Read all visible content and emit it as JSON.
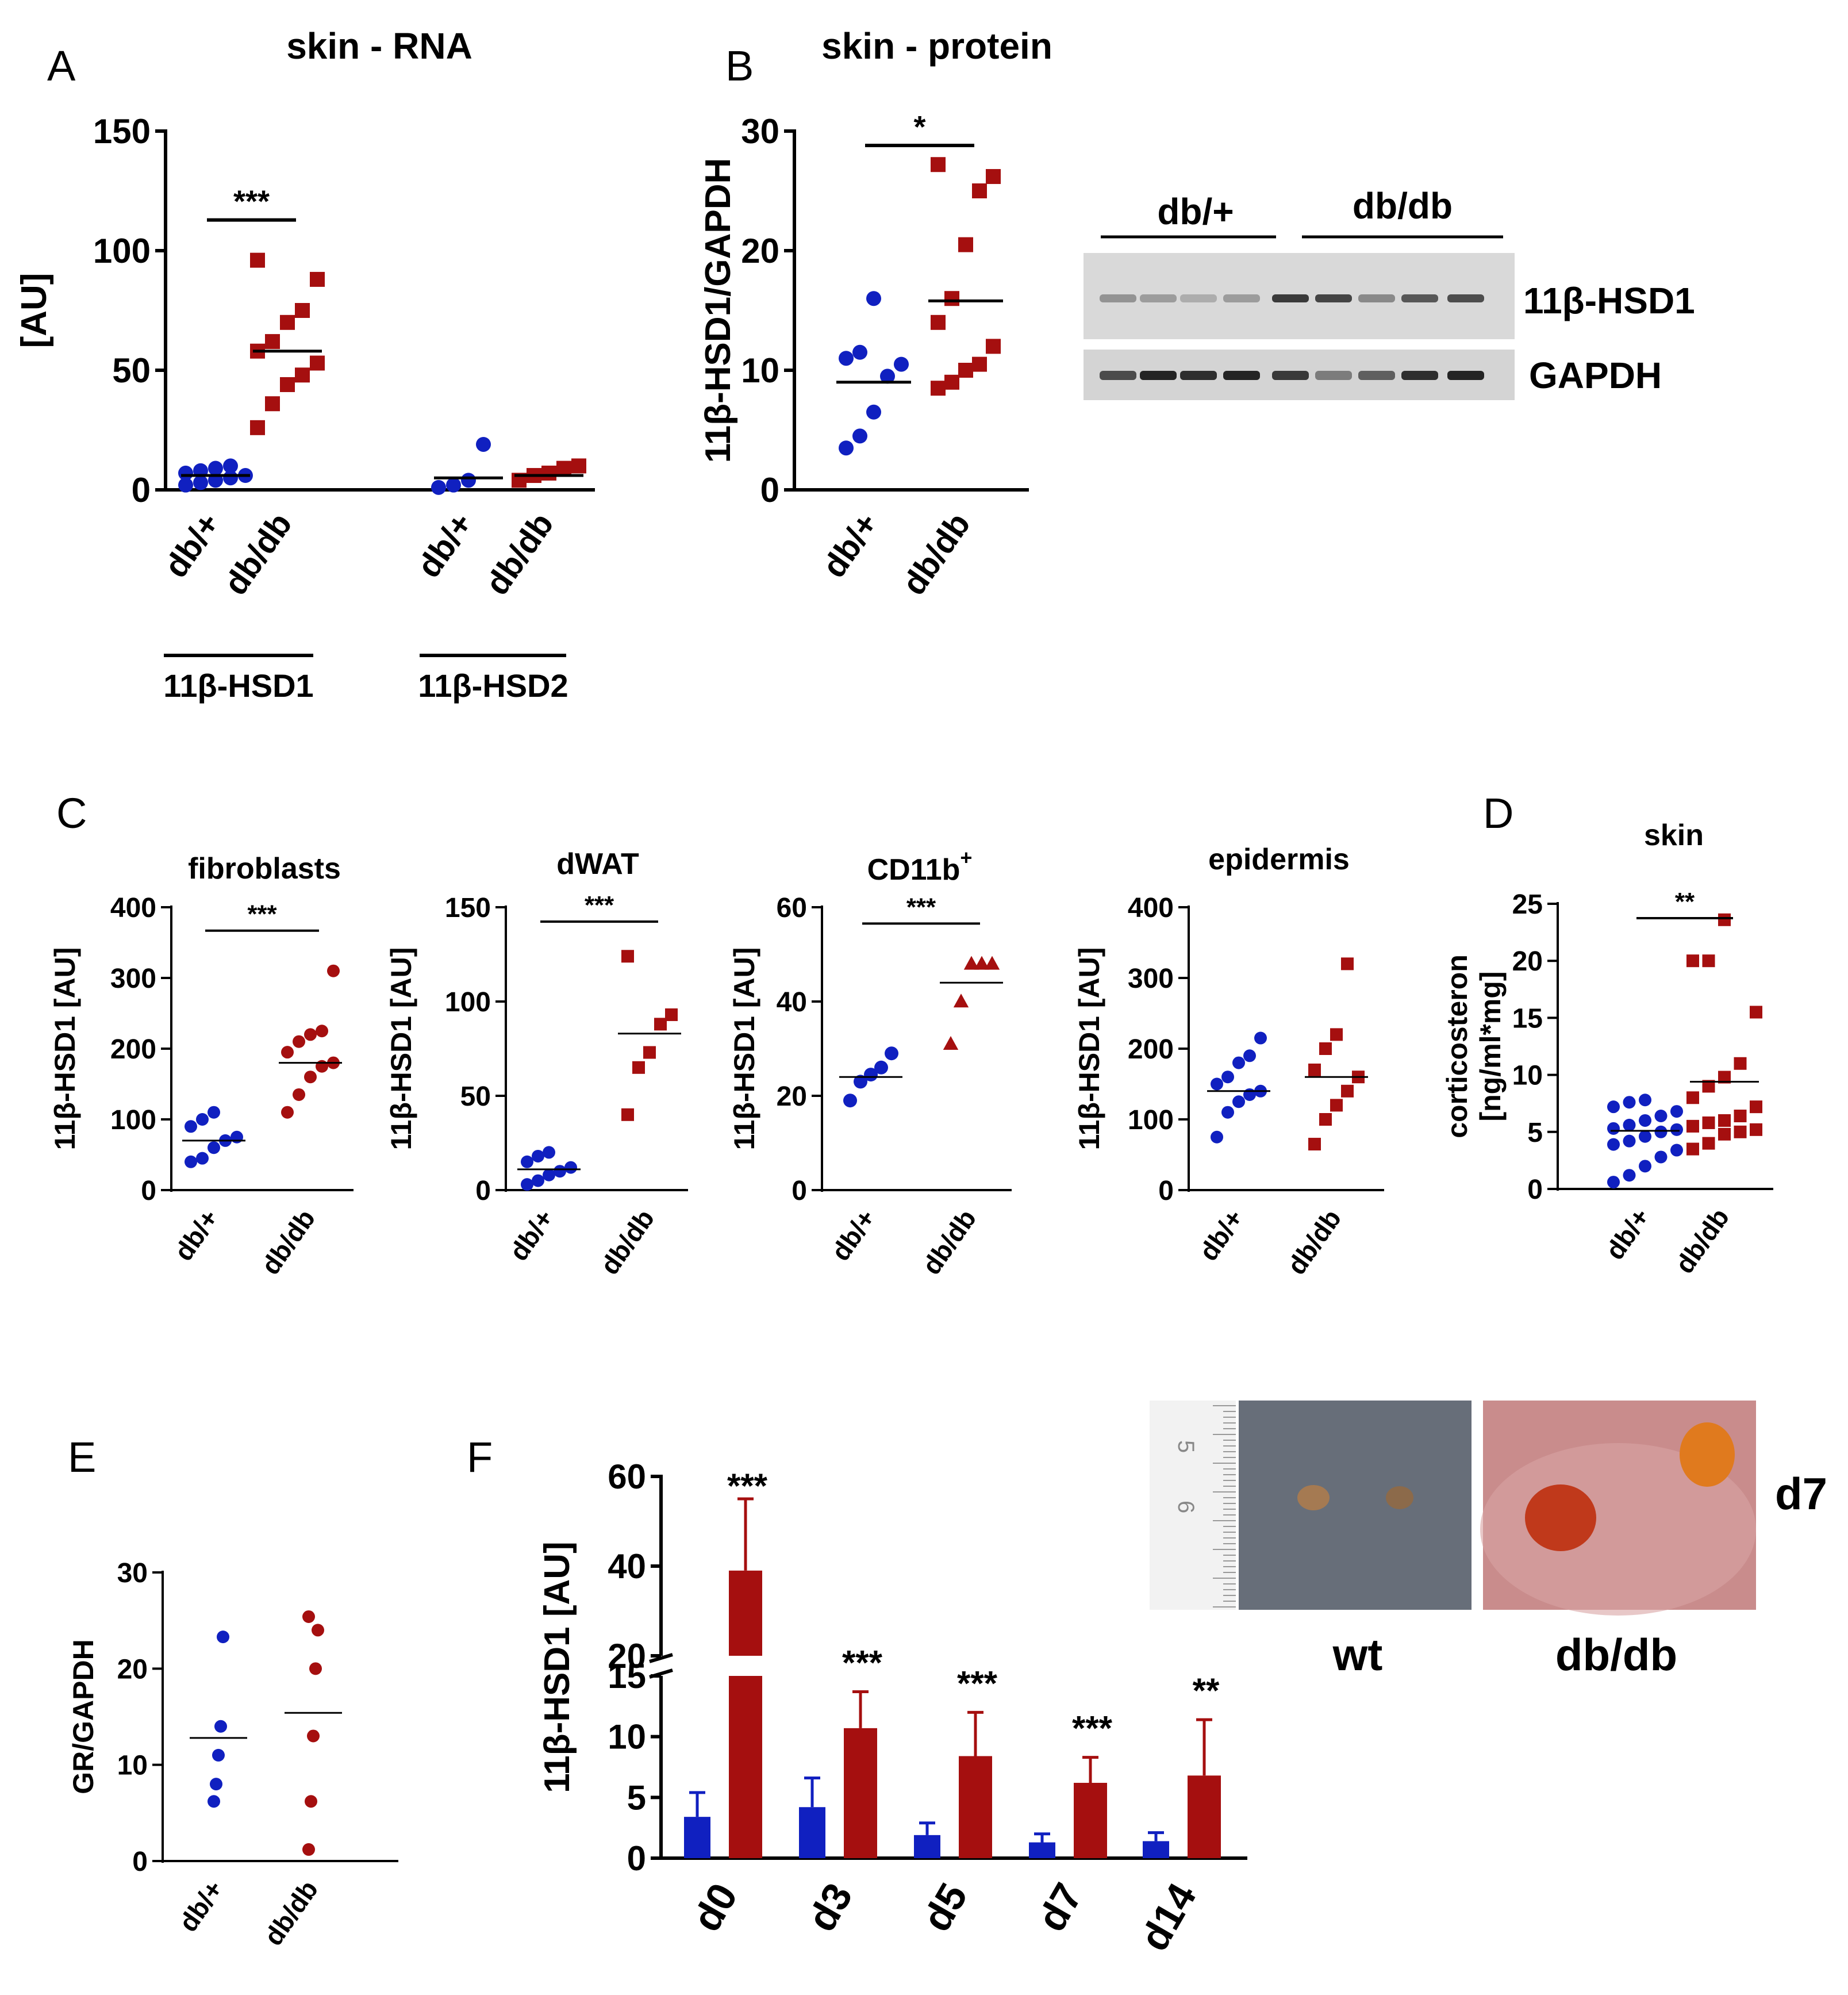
{
  "colors": {
    "dbplus": "#1020c0",
    "dbdb": "#a50f0f",
    "axis": "#000000"
  },
  "chart_data": [
    {
      "id": "A",
      "type": "scatter",
      "panel_label": "A",
      "title": "skin -  RNA",
      "ylabel": "[AU]",
      "ylim": [
        0,
        150
      ],
      "yticks": [
        "0",
        "50",
        "100",
        "150"
      ],
      "groups": [
        {
          "label": "db/+",
          "gene": "11β-HSD1",
          "series": "db/+",
          "mean": 6,
          "values": [
            2,
            3,
            4,
            5,
            6,
            7,
            8,
            9,
            10
          ]
        },
        {
          "label": "db/db",
          "gene": "11β-HSD1",
          "series": "db/db",
          "mean": 58,
          "values": [
            26,
            36,
            44,
            48,
            53,
            58,
            62,
            70,
            75,
            88,
            96
          ]
        },
        {
          "label": "db/+",
          "gene": "11β-HSD2",
          "series": "db/+",
          "mean": 5,
          "values": [
            1,
            2,
            4,
            19
          ]
        },
        {
          "label": "db/db",
          "gene": "11β-HSD2",
          "series": "db/db",
          "mean": 6,
          "values": [
            4,
            6,
            7,
            9,
            10
          ]
        }
      ],
      "group_brackets": [
        "11β-HSD1",
        "11β-HSD2"
      ],
      "significance": [
        {
          "text": "***",
          "between": [
            0,
            1
          ]
        }
      ]
    },
    {
      "id": "B",
      "type": "scatter",
      "panel_label": "B",
      "title": "skin - protein",
      "ylabel": "11β-HSD1/GAPDH",
      "ylim": [
        0,
        30
      ],
      "yticks": [
        "0",
        "10",
        "20",
        "30"
      ],
      "groups": [
        {
          "label": "db/+",
          "series": "db/+",
          "mean": 9,
          "values": [
            3.5,
            4.5,
            6.5,
            9.5,
            10.5,
            11,
            11.5,
            16
          ]
        },
        {
          "label": "db/db",
          "series": "db/db",
          "mean": 15.8,
          "values": [
            8.5,
            9,
            10,
            10.5,
            12,
            14,
            16,
            20.5,
            25,
            26.2,
            27.2
          ]
        }
      ],
      "significance": [
        {
          "text": "*",
          "between": [
            0,
            1
          ]
        }
      ]
    },
    {
      "id": "C1",
      "type": "scatter",
      "panel_label": "C",
      "title": "fibroblasts",
      "ylabel": "11β-HSD1 [AU]",
      "ylim": [
        0,
        400
      ],
      "yticks": [
        "0",
        "100",
        "200",
        "300",
        "400"
      ],
      "groups": [
        {
          "label": "db/+",
          "series": "db/+",
          "mean": 70,
          "values": [
            40,
            45,
            60,
            70,
            75,
            90,
            100,
            110
          ]
        },
        {
          "label": "db/db",
          "series": "db/db",
          "mean": 180,
          "values": [
            110,
            135,
            160,
            175,
            180,
            195,
            210,
            220,
            225,
            310
          ]
        }
      ],
      "significance": [
        {
          "text": "***",
          "between": [
            0,
            1
          ]
        }
      ]
    },
    {
      "id": "C2",
      "type": "scatter",
      "title": "dWAT",
      "ylabel": "11β-HSD1 [AU]",
      "ylim": [
        0,
        150
      ],
      "yticks": [
        "0",
        "50",
        "100",
        "150"
      ],
      "groups": [
        {
          "label": "db/+",
          "series": "db/+",
          "mean": 11,
          "values": [
            3,
            5,
            8,
            10,
            12,
            15,
            18,
            20
          ]
        },
        {
          "label": "db/db",
          "series": "db/db",
          "mean": 83,
          "values": [
            40,
            65,
            73,
            88,
            93,
            124
          ]
        }
      ],
      "significance": [
        {
          "text": "***",
          "between": [
            0,
            1
          ]
        }
      ]
    },
    {
      "id": "C3",
      "type": "scatter",
      "title": "CD11b",
      "title_superscript": "+",
      "ylabel": "11β-HSD1 [AU]",
      "ylim": [
        0,
        60
      ],
      "yticks": [
        "0",
        "20",
        "40",
        "60"
      ],
      "groups": [
        {
          "label": "db/+",
          "series": "db/+",
          "mean": 24,
          "values": [
            19,
            23,
            24.5,
            26,
            29
          ]
        },
        {
          "label": "db/db",
          "series": "db/db",
          "mean": 44,
          "values": [
            31,
            40,
            48,
            48,
            48
          ]
        }
      ],
      "significance": [
        {
          "text": "***",
          "between": [
            0,
            1
          ]
        }
      ]
    },
    {
      "id": "C4",
      "type": "scatter",
      "title": "epidermis",
      "ylabel": "11β-HSD1 [AU]",
      "ylim": [
        0,
        400
      ],
      "yticks": [
        "0",
        "100",
        "200",
        "300",
        "400"
      ],
      "groups": [
        {
          "label": "db/+",
          "series": "db/+",
          "mean": 140,
          "values": [
            75,
            110,
            125,
            135,
            140,
            150,
            160,
            180,
            190,
            215
          ]
        },
        {
          "label": "db/db",
          "series": "db/db",
          "mean": 160,
          "values": [
            65,
            100,
            120,
            140,
            160,
            170,
            200,
            220,
            320
          ]
        }
      ],
      "significance": []
    },
    {
      "id": "D",
      "type": "scatter",
      "panel_label": "D",
      "title": "skin",
      "ylabel_lines": [
        "corticosteron",
        "[ng/ml*mg]"
      ],
      "ylim": [
        0,
        25
      ],
      "yticks": [
        "0",
        "5",
        "10",
        "15",
        "20",
        "25"
      ],
      "groups": [
        {
          "label": "db/+",
          "series": "db/+",
          "mean": 5.1,
          "values": [
            0.6,
            1.2,
            2,
            2.8,
            3.4,
            3.9,
            4.2,
            4.6,
            5,
            5.3,
            5.6,
            6,
            6.4,
            6.8,
            7.2,
            7.6,
            7.8,
            5.2
          ]
        },
        {
          "label": "db/db",
          "series": "db/db",
          "mean": 9.4,
          "values": [
            3.5,
            4,
            4.8,
            5.2,
            5.5,
            6,
            6.4,
            7.2,
            8,
            9,
            11,
            15.5,
            20,
            20,
            23.6,
            5,
            5.8,
            9.8
          ]
        }
      ],
      "significance": [
        {
          "text": "**",
          "between": [
            0,
            1
          ]
        }
      ]
    },
    {
      "id": "E",
      "type": "scatter",
      "panel_label": "E",
      "title": "",
      "ylabel": "GR/GAPDH",
      "ylim": [
        0,
        30
      ],
      "yticks": [
        "0",
        "10",
        "20",
        "30"
      ],
      "groups": [
        {
          "label": "db/+",
          "series": "db/+",
          "mean": 12.8,
          "values": [
            6.2,
            8,
            11,
            14,
            23.3
          ]
        },
        {
          "label": "db/db",
          "series": "db/db",
          "mean": 15.4,
          "values": [
            1.2,
            6.2,
            13,
            20,
            24,
            25.4
          ]
        }
      ],
      "significance": []
    },
    {
      "id": "F",
      "type": "bar",
      "panel_label": "F",
      "ylabel": "11β-HSD1 [AU]",
      "broken_axis": true,
      "ylim_lower": [
        0,
        15
      ],
      "yticks_lower": [
        "0",
        "5",
        "10",
        "15"
      ],
      "ylim_upper": [
        20,
        60
      ],
      "yticks_upper": [
        "20",
        "40",
        "60"
      ],
      "categories": [
        "d0",
        "d3",
        "d5",
        "d7",
        "d14"
      ],
      "series": [
        {
          "name": "db/+",
          "values": [
            3.4,
            4.2,
            1.9,
            1.3,
            1.4
          ],
          "errors": [
            2.0,
            2.4,
            1.0,
            0.7,
            0.7
          ]
        },
        {
          "name": "db/db",
          "values": [
            39,
            10.7,
            8.4,
            6.2,
            6.8
          ],
          "errors": [
            16,
            3.0,
            3.6,
            2.1,
            4.6
          ]
        }
      ],
      "significance": [
        "***",
        "***",
        "***",
        "***",
        "**"
      ]
    }
  ],
  "western_blot": {
    "groups": [
      "db/+",
      "db/db"
    ],
    "bands": [
      "11β-HSD1",
      "GAPDH"
    ]
  },
  "photo": {
    "ruler_marks": [
      "5",
      "6"
    ],
    "labels": [
      "wt",
      "db/db"
    ],
    "day": "d7"
  }
}
